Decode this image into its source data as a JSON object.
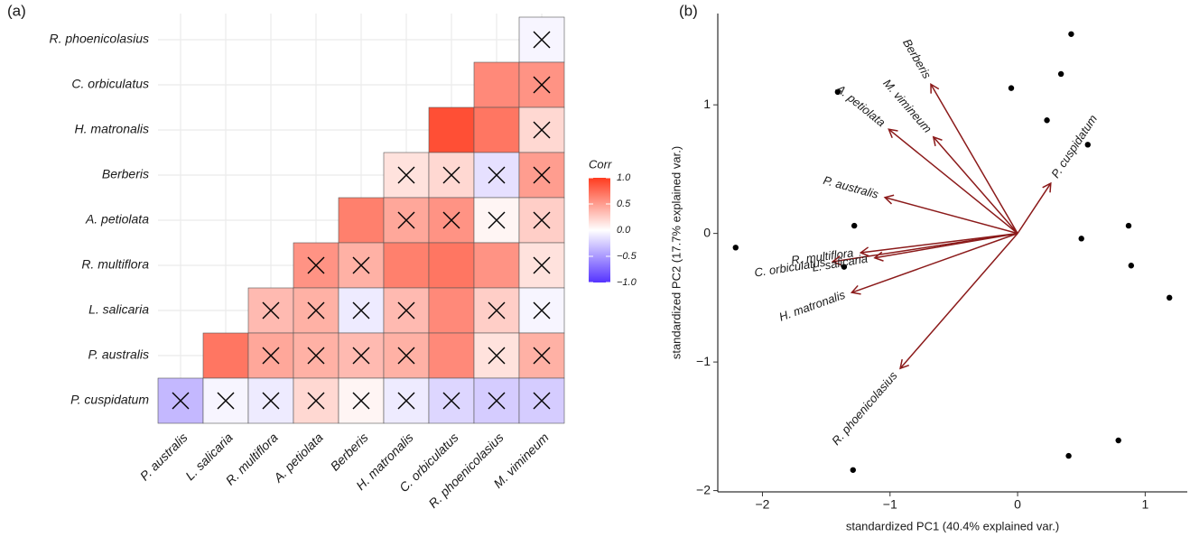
{
  "chart_data": [
    {
      "type": "heatmap",
      "panel_label": "(a)",
      "rows": [
        "R. phoenicolasius",
        "C. orbiculatus",
        "H. matronalis",
        "Berberis",
        "A. petiolata",
        "R. multiflora",
        "L. salicaria",
        "P. australis",
        "P. cuspidatum"
      ],
      "columns": [
        "P. australis",
        "L. salicaria",
        "R. multiflora",
        "A. petiolata",
        "Berberis",
        "H. matronalis",
        "C. orbiculatus",
        "R. phoenicolasius",
        "M. vimineum"
      ],
      "values": [
        [
          null,
          null,
          null,
          null,
          null,
          null,
          null,
          null,
          -0.05
        ],
        [
          null,
          null,
          null,
          null,
          null,
          null,
          null,
          0.6,
          0.55
        ],
        [
          null,
          null,
          null,
          null,
          null,
          null,
          0.9,
          0.7,
          0.2
        ],
        [
          null,
          null,
          null,
          null,
          null,
          0.15,
          0.2,
          -0.15,
          0.5
        ],
        [
          null,
          null,
          null,
          null,
          0.65,
          0.45,
          0.55,
          0.05,
          0.25
        ],
        [
          null,
          null,
          null,
          0.55,
          0.4,
          0.65,
          0.7,
          0.55,
          0.15
        ],
        [
          null,
          null,
          0.35,
          0.4,
          -0.1,
          0.35,
          0.6,
          0.25,
          -0.05
        ],
        [
          null,
          0.7,
          0.45,
          0.4,
          0.35,
          0.4,
          0.6,
          0.15,
          0.4
        ],
        [
          -0.35,
          -0.05,
          -0.1,
          0.2,
          0.05,
          -0.1,
          -0.2,
          -0.25,
          -0.25
        ]
      ],
      "crossed": [
        [
          null,
          null,
          null,
          null,
          null,
          null,
          null,
          null,
          true
        ],
        [
          null,
          null,
          null,
          null,
          null,
          null,
          null,
          false,
          true
        ],
        [
          null,
          null,
          null,
          null,
          null,
          null,
          false,
          false,
          true
        ],
        [
          null,
          null,
          null,
          null,
          null,
          true,
          true,
          true,
          true
        ],
        [
          null,
          null,
          null,
          null,
          false,
          true,
          true,
          true,
          true
        ],
        [
          null,
          null,
          null,
          true,
          true,
          false,
          false,
          false,
          true
        ],
        [
          null,
          null,
          true,
          true,
          true,
          true,
          false,
          true,
          true
        ],
        [
          null,
          false,
          true,
          true,
          true,
          true,
          false,
          true,
          true
        ],
        [
          true,
          true,
          true,
          true,
          true,
          true,
          true,
          true,
          true
        ]
      ],
      "legend_title": "Corr",
      "clim": [
        -1,
        1
      ],
      "colorbar_ticks": [
        {
          "value": 1,
          "label": "1.0"
        },
        0.5,
        {
          "value": 0,
          "label": "0.0"
        },
        {
          "value": -0.5,
          "label": "−0.5"
        },
        {
          "value": -1,
          "label": "−1.0"
        }
      ],
      "colors": {
        "low": "#5533ff",
        "mid": "#ffffff",
        "high": "#ff3b1f"
      }
    },
    {
      "type": "biplot",
      "panel_label": "(b)",
      "x_label": "standardized PC1 (40.4% explained var.)",
      "y_label": "standardized PC2 (17.7% explained var.)",
      "xlim": [
        -2.35,
        1.33
      ],
      "ylim": [
        -2.01,
        1.71
      ],
      "xticks": [
        {
          "value": -2,
          "label": "−2"
        },
        {
          "value": -1,
          "label": "−1"
        },
        0,
        1
      ],
      "yticks": [
        {
          "value": -2,
          "label": "−2"
        },
        {
          "value": -1,
          "label": "−1"
        },
        0,
        1
      ],
      "points": {
        "x": [
          0.42,
          0.34,
          -0.05,
          -1.41,
          0.23,
          0.55,
          -1.28,
          0.5,
          0.87,
          0.89,
          -1.36,
          -2.21,
          1.19,
          0.79,
          0.4,
          -1.29
        ],
        "y": [
          1.55,
          1.24,
          1.13,
          1.1,
          0.88,
          0.69,
          0.06,
          -0.04,
          0.06,
          -0.25,
          -0.26,
          -0.11,
          -0.5,
          -1.61,
          -1.73,
          -1.84
        ]
      },
      "point_color": "#000000",
      "arrows": {
        "names": [
          "Berberis",
          "M. vimineum",
          "A. petiolata",
          "P. australis",
          "R. multiflora",
          "C. orbiculatus",
          "L. salicaria",
          "H. matronalis",
          "R. phoenicolasius",
          "P. cuspidatum"
        ],
        "x": [
          -0.68,
          -0.66,
          -1.01,
          -1.04,
          -1.23,
          -1.45,
          -1.12,
          -1.3,
          -0.92,
          0.26
        ],
        "y": [
          1.16,
          0.75,
          0.81,
          0.28,
          -0.15,
          -0.22,
          -0.19,
          -0.46,
          -1.05,
          0.39
        ]
      },
      "arrow_color": "#8b1a1a"
    }
  ]
}
